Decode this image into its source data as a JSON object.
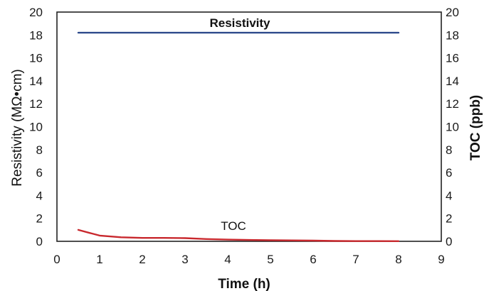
{
  "chart_data": {
    "type": "line",
    "xlabel": "Time (h)",
    "ylabel_left": "Resistivity (MΩ•cm)",
    "ylabel_right": "TOC (ppb)",
    "xlim": [
      0,
      9
    ],
    "ylim_left": [
      0,
      20
    ],
    "ylim_right": [
      0,
      20
    ],
    "x_ticks": [
      "0",
      "1",
      "2",
      "3",
      "4",
      "5",
      "6",
      "7",
      "8",
      "9"
    ],
    "y_ticks_left": [
      "0",
      "2",
      "4",
      "6",
      "8",
      "10",
      "12",
      "14",
      "16",
      "18",
      "20"
    ],
    "y_ticks_right": [
      "0",
      "2",
      "4",
      "6",
      "8",
      "10",
      "12",
      "14",
      "16",
      "18",
      "20"
    ],
    "grid": false,
    "series": [
      {
        "name": "Resistivity",
        "axis": "left",
        "color": "#2e4a8c",
        "x": [
          0.5,
          8
        ],
        "y": [
          18.2,
          18.2
        ]
      },
      {
        "name": "TOC",
        "axis": "right",
        "color": "#c8282d",
        "x": [
          0.5,
          1,
          1.5,
          2,
          2.5,
          3,
          3.5,
          4,
          4.5,
          5,
          5.5,
          6,
          6.5,
          7,
          7.5,
          8
        ],
        "y": [
          1.0,
          0.5,
          0.35,
          0.3,
          0.3,
          0.28,
          0.2,
          0.15,
          0.12,
          0.1,
          0.08,
          0.06,
          0.03,
          0.02,
          0.02,
          0.01
        ]
      }
    ]
  }
}
